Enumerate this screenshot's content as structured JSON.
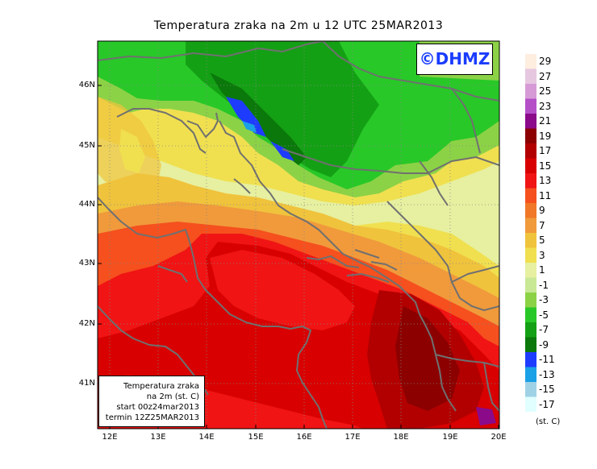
{
  "title": "Temperatura zraka na 2m u 12 UTC 25MAR2013",
  "logo": "©DHMZ",
  "info_box": {
    "line1": "Temperatura zraka",
    "line2": "na 2m (st. C)",
    "line3": "start 00z24mar2013",
    "line4": "termin 12Z25MAR2013"
  },
  "lat_labels": [
    "46N",
    "45N",
    "44N",
    "43N",
    "42N",
    "41N"
  ],
  "lon_labels": [
    "12E",
    "13E",
    "14E",
    "15E",
    "16E",
    "17E",
    "18E",
    "19E",
    "20E"
  ],
  "legend": {
    "units": "(st. C)",
    "levels": [
      {
        "value": "29",
        "color": "#fdeee0"
      },
      {
        "value": "27",
        "color": "#e6c7e0"
      },
      {
        "value": "25",
        "color": "#d69bd6"
      },
      {
        "value": "23",
        "color": "#b44fc8"
      },
      {
        "value": "21",
        "color": "#8a0a8a"
      },
      {
        "value": "19",
        "color": "#8c0000"
      },
      {
        "value": "17",
        "color": "#b20000"
      },
      {
        "value": "15",
        "color": "#d80000"
      },
      {
        "value": "13",
        "color": "#f01414"
      },
      {
        "value": "11",
        "color": "#f5501e"
      },
      {
        "value": "9",
        "color": "#f07828"
      },
      {
        "value": "7",
        "color": "#f09a3c"
      },
      {
        "value": "5",
        "color": "#f0c33c"
      },
      {
        "value": "3",
        "color": "#f0e050"
      },
      {
        "value": "1",
        "color": "#e6f0a0"
      },
      {
        "value": "-1",
        "color": "#c8e896"
      },
      {
        "value": "-3",
        "color": "#8cd246"
      },
      {
        "value": "-5",
        "color": "#28c828"
      },
      {
        "value": "-7",
        "color": "#14a014"
      },
      {
        "value": "-9",
        "color": "#0a780a"
      },
      {
        "value": "-11",
        "color": "#1e3cff"
      },
      {
        "value": "-13",
        "color": "#1aa0e6"
      },
      {
        "value": "-15",
        "color": "#a0d2e6"
      },
      {
        "value": "-17",
        "color": "#e1ffff"
      }
    ]
  }
}
